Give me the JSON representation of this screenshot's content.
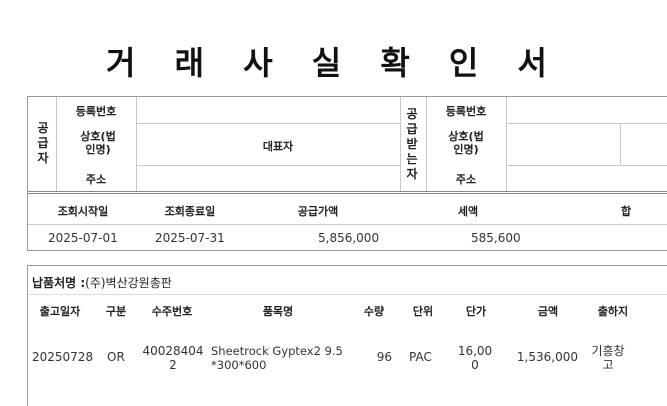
{
  "title": "거 래 사 실 확 인 서",
  "supplier": {
    "side_label": "공급자",
    "reg_label": "등록번호",
    "company_label": "상호(법인명)",
    "ceo_label": "대표자",
    "address_label": "주소"
  },
  "receiver": {
    "side_label": "공급받는자",
    "reg_label": "등록번호",
    "company_label": "상호(법인명)",
    "address_label": "주소"
  },
  "summary": {
    "headers": [
      "조회시작일",
      "조회종료일",
      "공급가액",
      "세액",
      "합"
    ],
    "start_date": "2025-07-01",
    "end_date": "2025-07-31",
    "supply_amount": "5,856,000",
    "tax_amount": "585,600"
  },
  "delivery": {
    "label": "납품처명 :",
    "name": "(주)벽산강원총판",
    "headers": [
      "출고일자",
      "구분",
      "수주번호",
      "품목명",
      "수량",
      "단위",
      "단가",
      "금액",
      "출하지"
    ],
    "rows": [
      {
        "date": "20250728",
        "type": "OR",
        "order_no": "40028404\n2",
        "item": "Sheetrock Gyptex2 9.5\n*300*600",
        "qty": "96",
        "unit": "PAC",
        "price": "16,00\n0",
        "amount": "1,536,000",
        "origin": "기흥창\n고"
      }
    ]
  }
}
